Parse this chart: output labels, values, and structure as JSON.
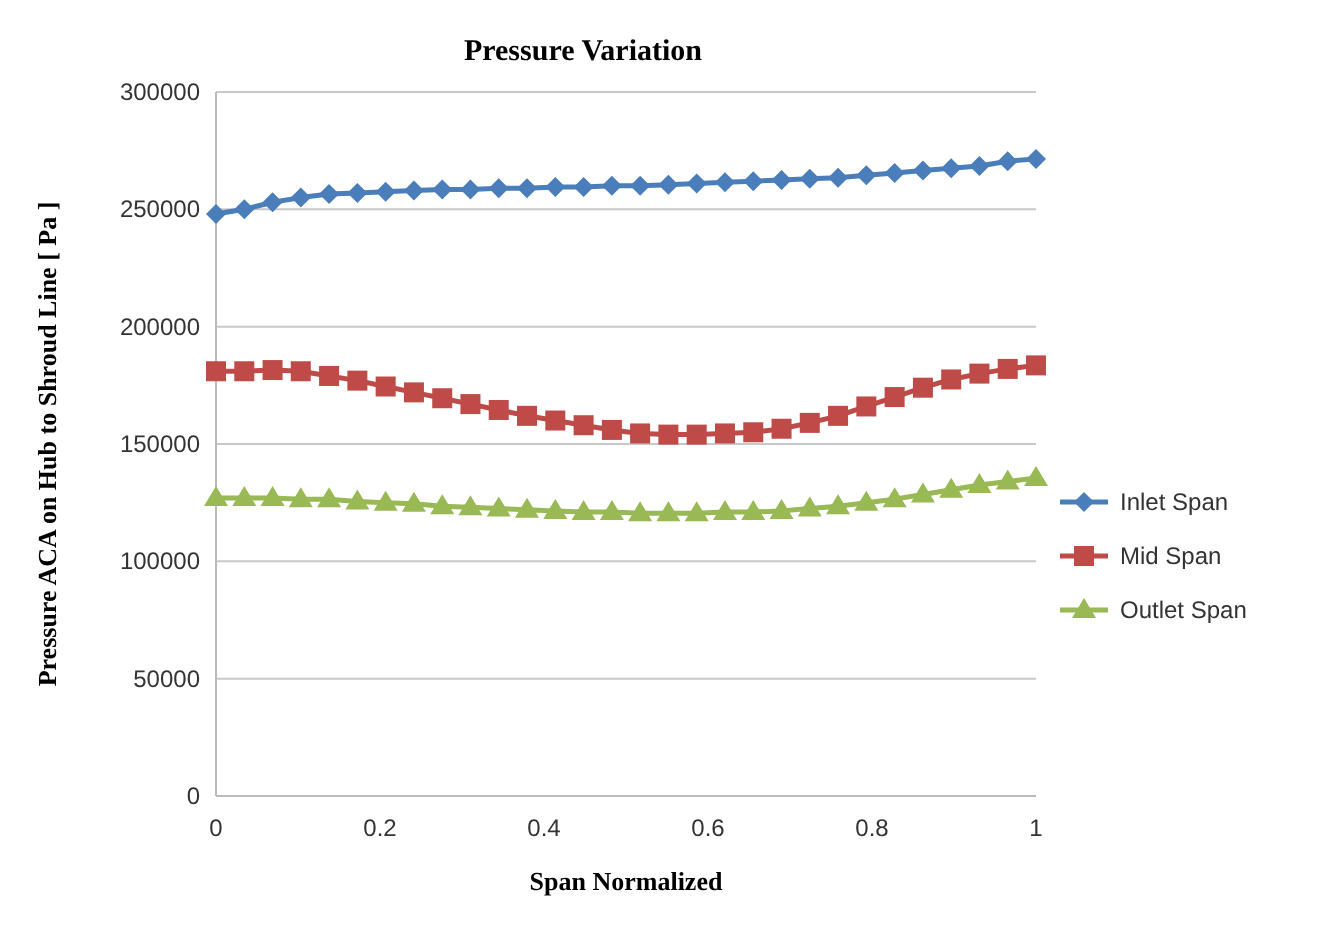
{
  "chart_data": {
    "type": "line",
    "title": "Pressure Variation",
    "xlabel": "Span Normalized",
    "ylabel": "Pressure ACA on Hub to Shroud Line [ Pa ]",
    "x": [
      0,
      0.0345,
      0.069,
      0.1034,
      0.1379,
      0.1724,
      0.2069,
      0.2414,
      0.2759,
      0.3103,
      0.3448,
      0.3793,
      0.4138,
      0.4483,
      0.4828,
      0.5172,
      0.5517,
      0.5862,
      0.6207,
      0.6552,
      0.6897,
      0.7241,
      0.7586,
      0.7931,
      0.8276,
      0.8621,
      0.8966,
      0.931,
      0.9655,
      1
    ],
    "series": [
      {
        "name": "Inlet Span",
        "color": "#4a7ebb",
        "marker": "diamond",
        "values": [
          248000,
          250000,
          253000,
          255000,
          256500,
          257000,
          257500,
          258000,
          258500,
          258500,
          259000,
          259000,
          259500,
          259500,
          260000,
          260000,
          260500,
          261000,
          261500,
          262000,
          262500,
          263000,
          263500,
          264500,
          265500,
          266500,
          267500,
          268500,
          270500,
          271500
        ]
      },
      {
        "name": "Mid Span",
        "color": "#be4b48",
        "marker": "square",
        "values": [
          181000,
          181000,
          181500,
          181000,
          179000,
          177000,
          174500,
          172000,
          169500,
          167000,
          164500,
          162000,
          160000,
          158000,
          156000,
          154500,
          154000,
          154000,
          154500,
          155000,
          156500,
          159000,
          162000,
          166000,
          170000,
          174000,
          177500,
          180000,
          182000,
          183500
        ]
      },
      {
        "name": "Outlet Span",
        "color": "#98b954",
        "marker": "triangle",
        "values": [
          127000,
          127000,
          127000,
          126500,
          126500,
          125500,
          125000,
          124500,
          123500,
          123000,
          122500,
          122000,
          121500,
          121000,
          121000,
          120500,
          120500,
          120500,
          121000,
          121000,
          121500,
          122500,
          123500,
          125000,
          126500,
          128500,
          130500,
          132500,
          134000,
          135500
        ]
      }
    ],
    "xlim": [
      0,
      1
    ],
    "xticks": [
      0,
      0.2,
      0.4,
      0.6,
      0.8,
      1
    ],
    "ylim": [
      0,
      300000
    ],
    "yticks": [
      0,
      50000,
      100000,
      150000,
      200000,
      250000,
      300000
    ],
    "grid": "y",
    "legend": "right"
  }
}
